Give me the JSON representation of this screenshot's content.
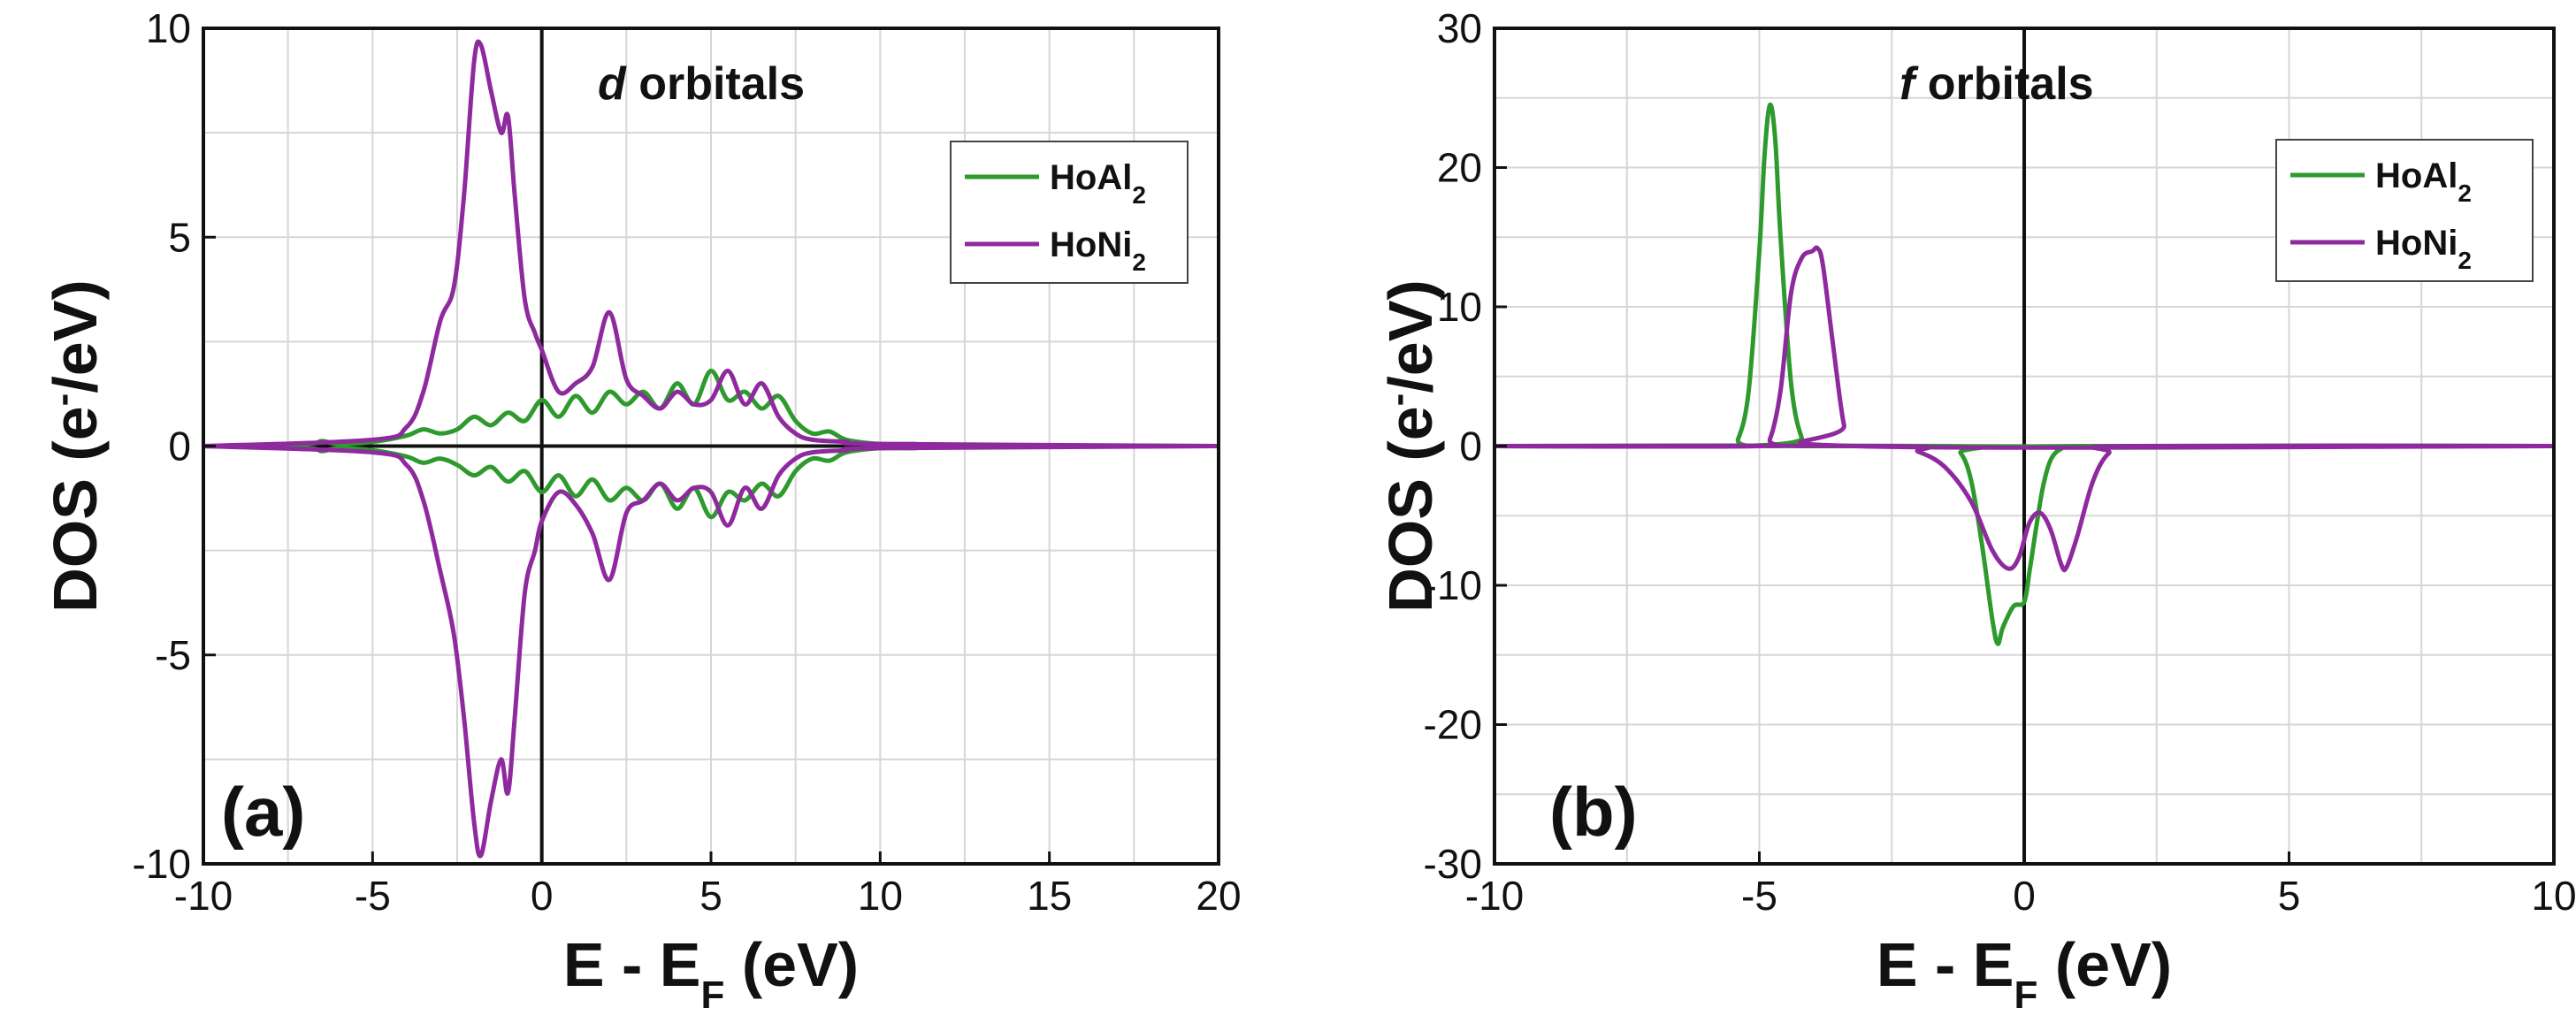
{
  "chart_data": [
    {
      "type": "line",
      "panel_label": "(a)",
      "annotation_italic": "d",
      "annotation_rest": " orbitals",
      "xlim": [
        -10,
        20
      ],
      "ylim": [
        -10,
        10
      ],
      "xticks": [
        -10,
        -5,
        0,
        5,
        10,
        15,
        20
      ],
      "yticks": [
        -10,
        -5,
        0,
        5,
        10
      ],
      "grid": true,
      "xlabel": {
        "main": "E - E",
        "sub": "F",
        "tail": " (eV)"
      },
      "ylabel": {
        "main": "DOS (e",
        "sup": "-",
        "tail": "/eV)"
      },
      "legend": {
        "position": "top-right"
      },
      "series": [
        {
          "name": "HoAl",
          "name_sub": "2",
          "color": "#2e9a2e",
          "spin_up": {
            "x": [
              -10,
              -7,
              -6.5,
              -6,
              -5,
              -4,
              -3.5,
              -3,
              -2.5,
              -2,
              -1.5,
              -1,
              -0.5,
              0,
              0.5,
              1,
              1.5,
              2,
              2.5,
              3,
              3.5,
              4,
              4.5,
              5,
              5.5,
              6,
              6.5,
              7,
              7.5,
              8,
              8.5,
              9,
              10,
              11,
              12,
              20
            ],
            "y": [
              0,
              0.05,
              0.12,
              0.05,
              0.1,
              0.25,
              0.4,
              0.3,
              0.4,
              0.7,
              0.5,
              0.8,
              0.6,
              1.1,
              0.7,
              1.2,
              0.8,
              1.3,
              1.0,
              1.3,
              0.9,
              1.5,
              1.0,
              1.8,
              1.1,
              1.3,
              0.9,
              1.2,
              0.6,
              0.3,
              0.35,
              0.15,
              0.05,
              0.05,
              0.02,
              0
            ]
          },
          "spin_down": {
            "x": [
              -10,
              -7,
              -6.5,
              -6,
              -5,
              -4,
              -3.5,
              -3,
              -2.5,
              -2,
              -1.5,
              -1,
              -0.5,
              0,
              0.5,
              1,
              1.5,
              2,
              2.5,
              3,
              3.5,
              4,
              4.5,
              5,
              5.5,
              6,
              6.5,
              7,
              7.5,
              8,
              8.5,
              9,
              10,
              11,
              12,
              20
            ],
            "y": [
              0,
              -0.05,
              -0.12,
              -0.05,
              -0.1,
              -0.25,
              -0.4,
              -0.3,
              -0.45,
              -0.7,
              -0.5,
              -0.85,
              -0.6,
              -1.1,
              -0.7,
              -1.2,
              -0.8,
              -1.3,
              -1.0,
              -1.3,
              -0.9,
              -1.5,
              -1.0,
              -1.7,
              -1.1,
              -1.3,
              -0.9,
              -1.2,
              -0.6,
              -0.3,
              -0.35,
              -0.15,
              -0.05,
              -0.05,
              -0.02,
              0
            ]
          }
        },
        {
          "name": "HoNi",
          "name_sub": "2",
          "color": "#8e2a9e",
          "spin_up": {
            "x": [
              -10,
              -5,
              -4,
              -3.5,
              -3,
              -2.6,
              -2.3,
              -2,
              -1.8,
              -1.5,
              -1.2,
              -1,
              -0.8,
              -0.5,
              -0.2,
              0,
              0.5,
              1,
              1.5,
              2,
              2.5,
              3,
              3.5,
              4,
              4.5,
              5,
              5.5,
              6,
              6.5,
              7,
              7.5,
              8,
              9,
              10,
              20
            ],
            "y": [
              0,
              0.15,
              0.45,
              1.3,
              3.0,
              3.8,
              6.0,
              9.2,
              9.6,
              8.5,
              7.5,
              7.9,
              6.0,
              3.5,
              2.7,
              2.3,
              1.3,
              1.5,
              1.9,
              3.2,
              1.6,
              1.2,
              0.9,
              1.3,
              1.0,
              1.1,
              1.8,
              1.0,
              1.5,
              0.7,
              0.3,
              0.15,
              0.1,
              0.05,
              0
            ]
          },
          "spin_down": {
            "x": [
              -10,
              -5,
              -4,
              -3.5,
              -3,
              -2.6,
              -2.3,
              -2,
              -1.8,
              -1.5,
              -1.2,
              -1,
              -0.8,
              -0.5,
              -0.2,
              0,
              0.5,
              1,
              1.5,
              2,
              2.5,
              3,
              3.5,
              4,
              4.5,
              5,
              5.5,
              6,
              6.5,
              7,
              7.5,
              8,
              9,
              10,
              20
            ],
            "y": [
              0,
              -0.15,
              -0.45,
              -1.3,
              -3.0,
              -4.5,
              -6.5,
              -9.0,
              -9.8,
              -8.5,
              -7.5,
              -8.3,
              -6.5,
              -3.5,
              -2.5,
              -1.8,
              -1.1,
              -1.4,
              -2.1,
              -3.2,
              -1.6,
              -1.3,
              -0.9,
              -1.3,
              -1.0,
              -1.1,
              -1.9,
              -1.0,
              -1.5,
              -0.7,
              -0.3,
              -0.15,
              -0.1,
              -0.05,
              0
            ]
          }
        }
      ]
    },
    {
      "type": "line",
      "panel_label": "(b)",
      "annotation_italic": "f",
      "annotation_rest": " orbitals",
      "xlim": [
        -10,
        10
      ],
      "ylim": [
        -30,
        30
      ],
      "xticks": [
        -10,
        -5,
        0,
        5,
        10
      ],
      "yticks": [
        -30,
        -20,
        -10,
        0,
        10,
        20,
        30
      ],
      "grid": true,
      "xlabel": {
        "main": "E - E",
        "sub": "F",
        "tail": " (eV)"
      },
      "ylabel": {
        "main": "DOS (e",
        "sup": "-",
        "tail": "/eV)"
      },
      "legend": {
        "position": "top-right"
      },
      "series": [
        {
          "name": "HoAl",
          "name_sub": "2",
          "color": "#2e9a2e",
          "spin_up": {
            "x": [
              -10,
              -5.6,
              -5.4,
              -5.2,
              -5.0,
              -4.9,
              -4.8,
              -4.7,
              -4.6,
              -4.4,
              -4.2,
              -4.0,
              10
            ],
            "y": [
              0,
              0,
              0.5,
              4.0,
              14.0,
              21.0,
              24.5,
              22.0,
              15.0,
              4.5,
              0.6,
              0,
              0
            ]
          },
          "spin_down": {
            "x": [
              -10,
              -1.5,
              -1.2,
              -1.0,
              -0.8,
              -0.6,
              -0.5,
              -0.4,
              -0.2,
              0,
              0.1,
              0.2,
              0.35,
              0.5,
              0.7,
              1.0,
              10
            ],
            "y": [
              0,
              0,
              -0.5,
              -2.5,
              -7.0,
              -12.5,
              -14.2,
              -13.0,
              -11.5,
              -11.2,
              -9.0,
              -6.5,
              -3.0,
              -1.0,
              -0.2,
              0,
              0
            ]
          }
        },
        {
          "name": "HoNi",
          "name_sub": "2",
          "color": "#8e2a9e",
          "spin_up": {
            "x": [
              -10,
              -5.0,
              -4.8,
              -4.6,
              -4.4,
              -4.2,
              -4.0,
              -3.9,
              -3.8,
              -3.6,
              -3.4,
              -3.2,
              10
            ],
            "y": [
              0,
              0,
              0.5,
              4.0,
              11.0,
              13.5,
              14.0,
              14.2,
              13.0,
              7.0,
              1.5,
              0,
              0
            ]
          },
          "spin_down": {
            "x": [
              -10,
              -2.5,
              -2.0,
              -1.5,
              -1.0,
              -0.6,
              -0.3,
              -0.1,
              0.1,
              0.3,
              0.5,
              0.7,
              0.8,
              1.0,
              1.3,
              1.6,
              2.0,
              10
            ],
            "y": [
              0,
              0,
              -0.4,
              -1.5,
              -4.0,
              -7.5,
              -8.8,
              -8.0,
              -5.5,
              -4.8,
              -6.0,
              -8.5,
              -8.7,
              -6.5,
              -2.5,
              -0.5,
              0,
              0
            ]
          }
        }
      ]
    }
  ]
}
